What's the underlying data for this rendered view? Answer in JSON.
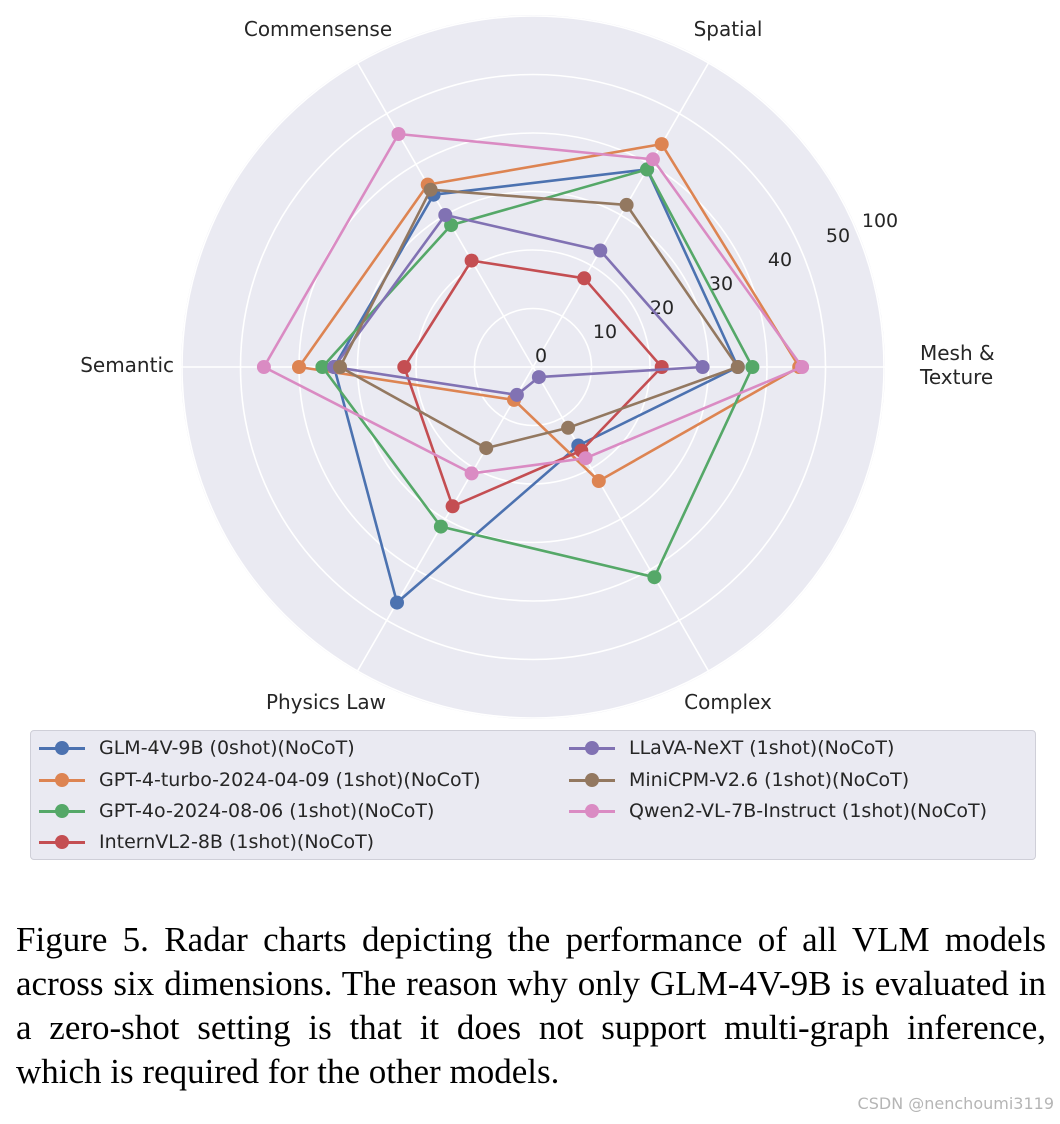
{
  "chart_data": {
    "type": "radar",
    "axes": [
      "Mesh &\nTexture",
      "Spatial",
      "Commensense",
      "Semantic",
      "Physics Law",
      "Complex"
    ],
    "radial_ticks": [
      {
        "label": "0",
        "radius_index": 0
      },
      {
        "label": "10",
        "radius_index": 1
      },
      {
        "label": "20",
        "radius_index": 2
      },
      {
        "label": "30",
        "radius_index": 3
      },
      {
        "label": "40",
        "radius_index": 4
      },
      {
        "label": "50",
        "radius_index": 5
      },
      {
        "label": "100",
        "radius_index": 6
      }
    ],
    "scale_note": "radial axis is non-linear: tick rings at 0,10,20,30,40,50,100; values given in ring units",
    "series": [
      {
        "name": "GLM-4V-9B (0shot)(NoCoT)",
        "color": "#4c72b0",
        "values": [
          3.5,
          3.9,
          3.4,
          3.4,
          4.65,
          1.55
        ]
      },
      {
        "name": "GPT-4-turbo-2024-04-09 (1shot)(NoCoT)",
        "color": "#dd8452",
        "values": [
          4.55,
          4.4,
          3.6,
          4.0,
          0.65,
          2.25
        ]
      },
      {
        "name": "GPT-4o-2024-08-06 (1shot)(NoCoT)",
        "color": "#55a868",
        "values": [
          3.75,
          3.9,
          2.8,
          3.6,
          3.15,
          4.15
        ]
      },
      {
        "name": "InternVL2-8B (1shot)(NoCoT)",
        "color": "#c44e52",
        "values": [
          2.2,
          1.75,
          2.1,
          2.2,
          2.75,
          1.65
        ]
      },
      {
        "name": "LLaVA-NeXT (1shot)(NoCoT)",
        "color": "#8172b3",
        "values": [
          2.9,
          2.3,
          3.0,
          3.4,
          0.55,
          0.2
        ]
      },
      {
        "name": "MiniCPM-V2.6 (1shot)(NoCoT)",
        "color": "#937860",
        "values": [
          3.5,
          3.2,
          3.5,
          3.3,
          1.6,
          1.2
        ]
      },
      {
        "name": "Qwen2-VL-7B-Instruct (1shot)(NoCoT)",
        "color": "#da8bc3",
        "values": [
          4.6,
          4.1,
          4.6,
          4.6,
          2.1,
          1.8
        ]
      }
    ],
    "ylim": [
      0,
      6
    ],
    "grid": true,
    "legend_position": "bottom"
  },
  "caption": "Figure 5. Radar charts depicting the performance of all VLM models across six dimensions.  The reason why only GLM-4V-9B is evaluated in a zero-shot setting is that it does not support multi-graph inference, which is required for the other models.",
  "watermark": "CSDN @nenchoumi3119"
}
